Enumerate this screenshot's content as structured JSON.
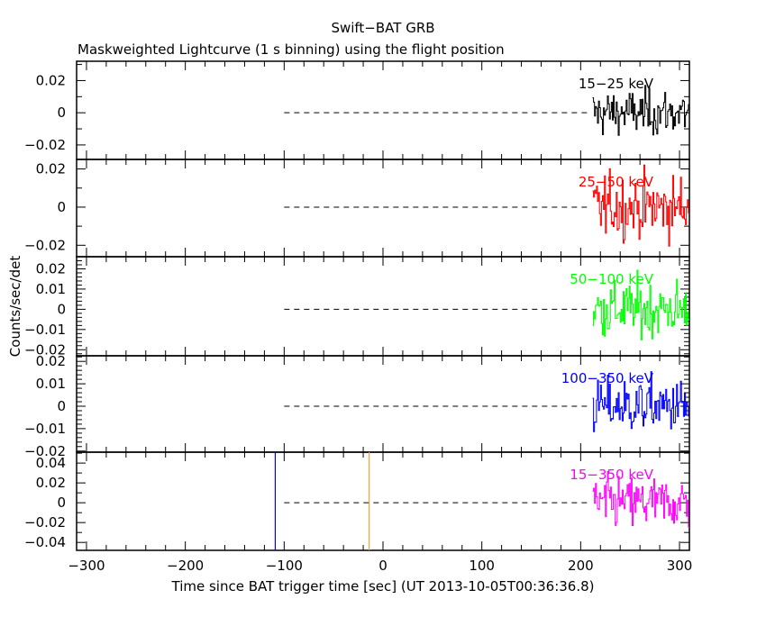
{
  "chart_data": {
    "type": "line",
    "title": "Swift−BAT GRB",
    "subtitle": "Maskweighted Lightcurve (1 s binning) using the flight position",
    "xlabel": "Time since BAT trigger time [sec] (UT 2013-10-05T00:36:36.8)",
    "ylabel": "Counts/sec/det",
    "xlim": [
      -310,
      310
    ],
    "x_ticks": [
      -300,
      -200,
      -100,
      0,
      100,
      200,
      300
    ],
    "x_tick_labels": [
      "−300",
      "−200",
      "−100",
      "0",
      "100",
      "200",
      "300"
    ],
    "grid": false,
    "zero_line": {
      "style": "dashed",
      "x_range": [
        -100,
        210
      ]
    },
    "marker_lines": [
      {
        "x": -109,
        "color": "#0000ff"
      },
      {
        "x": -14,
        "color": "#ff9933"
      }
    ],
    "panels": [
      {
        "band": "15−25 keV",
        "color": "#000000",
        "ylim": [
          -0.029,
          0.032
        ],
        "y_ticks": [
          -0.02,
          0,
          0.02
        ],
        "y_tick_labels": [
          "−0.02",
          "0",
          "0.02"
        ],
        "data_x_range": [
          212,
          310
        ],
        "noise_sigma": 0.007
      },
      {
        "band": "25−50 keV",
        "color": "#ff0000",
        "ylim": [
          -0.026,
          0.025
        ],
        "y_ticks": [
          -0.02,
          0,
          0.02
        ],
        "y_tick_labels": [
          "−0.02",
          "0",
          "0.02"
        ],
        "data_x_range": [
          212,
          310
        ],
        "noise_sigma": 0.008
      },
      {
        "band": "50−100 keV",
        "color": "#00ff00",
        "ylim": [
          -0.023,
          0.026
        ],
        "y_ticks": [
          -0.02,
          -0.01,
          0,
          0.01,
          0.02
        ],
        "y_tick_labels": [
          "−0.02",
          "−0.01",
          "0",
          "0.01",
          "0.02"
        ],
        "data_x_range": [
          212,
          310
        ],
        "noise_sigma": 0.007
      },
      {
        "band": "100−350 keV",
        "color": "#0000ff",
        "ylim": [
          -0.0205,
          0.0225
        ],
        "y_ticks": [
          -0.02,
          -0.01,
          0,
          0.01,
          0.02
        ],
        "y_tick_labels": [
          "−0.02",
          "−0.01",
          "0",
          "0.01",
          "0.02"
        ],
        "data_x_range": [
          212,
          310
        ],
        "noise_sigma": 0.006
      },
      {
        "band": "15−350 keV",
        "color": "#ff00ff",
        "ylim": [
          -0.048,
          0.051
        ],
        "y_ticks": [
          -0.04,
          -0.02,
          0,
          0.02,
          0.04
        ],
        "y_tick_labels": [
          "−0.04",
          "−0.02",
          "0",
          "0.02",
          "0.04"
        ],
        "data_x_range": [
          212,
          310
        ],
        "noise_sigma": 0.013
      }
    ]
  }
}
